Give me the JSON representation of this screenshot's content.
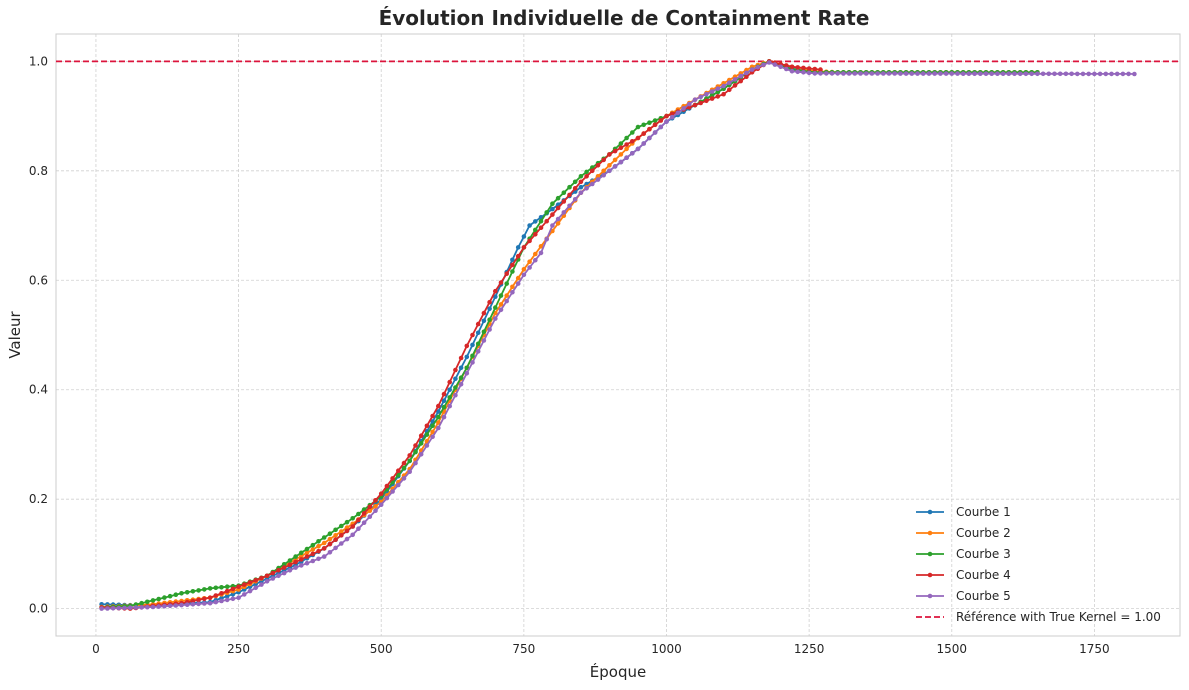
{
  "chart_data": {
    "type": "line",
    "title": "Évolution Individuelle de Containment Rate",
    "xlabel": "Époque",
    "ylabel": "Valeur",
    "xlim": [
      -70,
      1900
    ],
    "ylim": [
      -0.05,
      1.05
    ],
    "xticks": [
      "0",
      "250",
      "500",
      "750",
      "1000",
      "1250",
      "1500",
      "1750"
    ],
    "yticks": [
      "0.0",
      "0.2",
      "0.4",
      "0.6",
      "0.8",
      "1.0"
    ],
    "grid": true,
    "legend_position": "lower-right",
    "reference": {
      "label": "Référence with True Kernel = 1.00",
      "y": 1.0,
      "color": "#dc143c"
    },
    "series": [
      {
        "name": "Courbe 1",
        "color": "#1f77b4",
        "x_start": 10,
        "x_end": 1240,
        "x_step": 10,
        "anchors": [
          [
            10,
            0.008
          ],
          [
            100,
            0.005
          ],
          [
            200,
            0.012
          ],
          [
            250,
            0.03
          ],
          [
            300,
            0.055
          ],
          [
            350,
            0.08
          ],
          [
            400,
            0.11
          ],
          [
            450,
            0.15
          ],
          [
            500,
            0.2
          ],
          [
            550,
            0.27
          ],
          [
            600,
            0.36
          ],
          [
            650,
            0.46
          ],
          [
            700,
            0.57
          ],
          [
            740,
            0.66
          ],
          [
            760,
            0.7
          ],
          [
            800,
            0.73
          ],
          [
            850,
            0.77
          ],
          [
            900,
            0.8
          ],
          [
            950,
            0.84
          ],
          [
            1000,
            0.89
          ],
          [
            1050,
            0.92
          ],
          [
            1100,
            0.95
          ],
          [
            1150,
            0.985
          ],
          [
            1180,
            1.0
          ],
          [
            1210,
            0.99
          ],
          [
            1240,
            0.985
          ]
        ]
      },
      {
        "name": "Courbe 2",
        "color": "#ff7f0e",
        "x_start": 10,
        "x_end": 1650,
        "x_step": 10,
        "anchors": [
          [
            10,
            0.003
          ],
          [
            100,
            0.008
          ],
          [
            200,
            0.02
          ],
          [
            250,
            0.035
          ],
          [
            300,
            0.06
          ],
          [
            350,
            0.09
          ],
          [
            400,
            0.12
          ],
          [
            450,
            0.155
          ],
          [
            500,
            0.195
          ],
          [
            550,
            0.255
          ],
          [
            600,
            0.34
          ],
          [
            650,
            0.44
          ],
          [
            700,
            0.54
          ],
          [
            750,
            0.62
          ],
          [
            800,
            0.69
          ],
          [
            850,
            0.76
          ],
          [
            900,
            0.81
          ],
          [
            950,
            0.86
          ],
          [
            1000,
            0.9
          ],
          [
            1050,
            0.93
          ],
          [
            1100,
            0.96
          ],
          [
            1150,
            0.99
          ],
          [
            1180,
            1.0
          ],
          [
            1220,
            0.99
          ],
          [
            1260,
            0.982
          ],
          [
            1300,
            0.98
          ],
          [
            1650,
            0.98
          ]
        ]
      },
      {
        "name": "Courbe 3",
        "color": "#2ca02c",
        "x_start": 10,
        "x_end": 1650,
        "x_step": 10,
        "anchors": [
          [
            10,
            0.002
          ],
          [
            60,
            0.005
          ],
          [
            100,
            0.015
          ],
          [
            150,
            0.028
          ],
          [
            200,
            0.037
          ],
          [
            250,
            0.042
          ],
          [
            300,
            0.06
          ],
          [
            350,
            0.095
          ],
          [
            400,
            0.13
          ],
          [
            450,
            0.165
          ],
          [
            500,
            0.205
          ],
          [
            550,
            0.27
          ],
          [
            600,
            0.35
          ],
          [
            650,
            0.44
          ],
          [
            700,
            0.55
          ],
          [
            750,
            0.66
          ],
          [
            800,
            0.74
          ],
          [
            850,
            0.79
          ],
          [
            900,
            0.83
          ],
          [
            950,
            0.88
          ],
          [
            1000,
            0.9
          ],
          [
            1050,
            0.92
          ],
          [
            1100,
            0.95
          ],
          [
            1150,
            0.985
          ],
          [
            1180,
            1.0
          ],
          [
            1220,
            0.985
          ],
          [
            1260,
            0.98
          ],
          [
            1650,
            0.98
          ]
        ]
      },
      {
        "name": "Courbe 4",
        "color": "#d62728",
        "x_start": 10,
        "x_end": 1270,
        "x_step": 10,
        "anchors": [
          [
            10,
            0.002
          ],
          [
            60,
            0.0
          ],
          [
            100,
            0.005
          ],
          [
            150,
            0.01
          ],
          [
            200,
            0.02
          ],
          [
            250,
            0.04
          ],
          [
            300,
            0.06
          ],
          [
            350,
            0.085
          ],
          [
            400,
            0.11
          ],
          [
            450,
            0.15
          ],
          [
            500,
            0.21
          ],
          [
            550,
            0.28
          ],
          [
            600,
            0.37
          ],
          [
            650,
            0.48
          ],
          [
            700,
            0.58
          ],
          [
            750,
            0.66
          ],
          [
            800,
            0.72
          ],
          [
            850,
            0.78
          ],
          [
            900,
            0.83
          ],
          [
            950,
            0.86
          ],
          [
            1000,
            0.9
          ],
          [
            1050,
            0.92
          ],
          [
            1100,
            0.94
          ],
          [
            1150,
            0.98
          ],
          [
            1180,
            1.0
          ],
          [
            1220,
            0.99
          ],
          [
            1270,
            0.985
          ]
        ]
      },
      {
        "name": "Courbe 5",
        "color": "#9467bd",
        "x_start": 10,
        "x_end": 1820,
        "x_step": 10,
        "anchors": [
          [
            10,
            0.0
          ],
          [
            100,
            0.003
          ],
          [
            200,
            0.01
          ],
          [
            250,
            0.02
          ],
          [
            300,
            0.05
          ],
          [
            350,
            0.075
          ],
          [
            400,
            0.095
          ],
          [
            450,
            0.135
          ],
          [
            500,
            0.19
          ],
          [
            550,
            0.25
          ],
          [
            600,
            0.33
          ],
          [
            650,
            0.43
          ],
          [
            700,
            0.53
          ],
          [
            750,
            0.61
          ],
          [
            780,
            0.65
          ],
          [
            800,
            0.7
          ],
          [
            850,
            0.76
          ],
          [
            900,
            0.8
          ],
          [
            950,
            0.84
          ],
          [
            1000,
            0.89
          ],
          [
            1050,
            0.93
          ],
          [
            1100,
            0.955
          ],
          [
            1150,
            0.985
          ],
          [
            1180,
            0.998
          ],
          [
            1220,
            0.982
          ],
          [
            1260,
            0.978
          ],
          [
            1820,
            0.977
          ]
        ]
      }
    ]
  }
}
